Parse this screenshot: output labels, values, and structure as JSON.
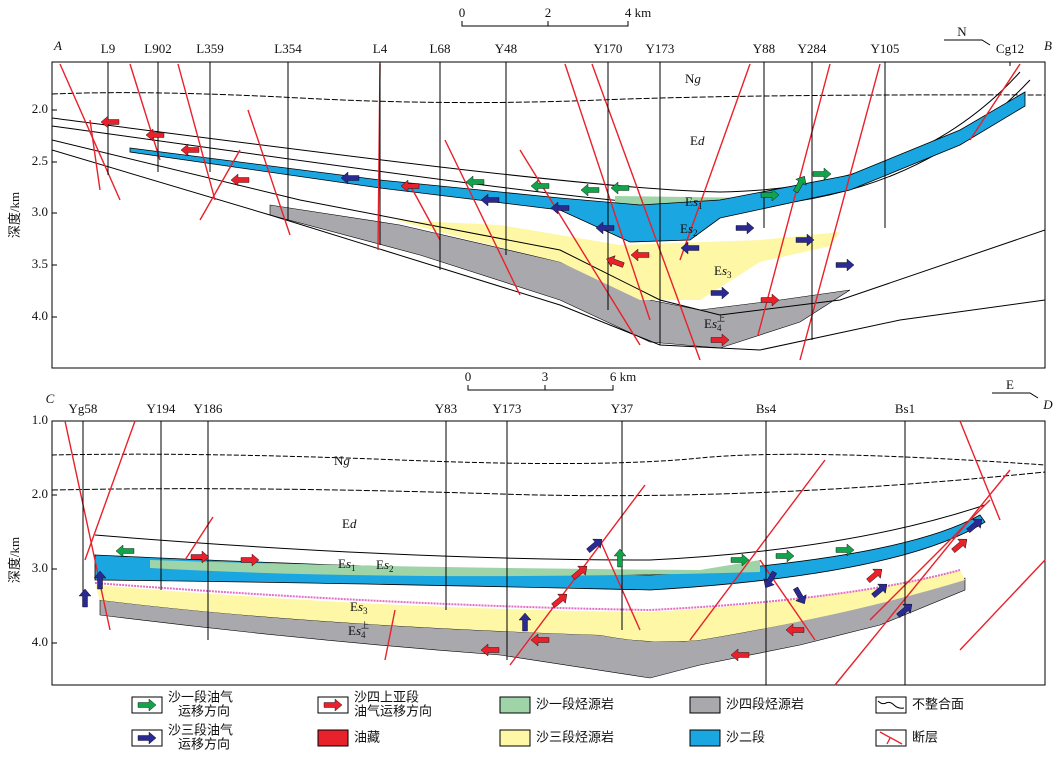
{
  "sections": [
    {
      "start": "A",
      "end": "B",
      "scale": [
        "0",
        "2",
        "4 km"
      ],
      "direction": "N",
      "axis_label": "深度/km",
      "depth_ticks": [
        "2.0",
        "2.5",
        "3.0",
        "3.5",
        "4.0"
      ],
      "wells": [
        "L9",
        "L902",
        "L359",
        "L354",
        "L4",
        "L68",
        "Y48",
        "Y170",
        "Y173",
        "Y88",
        "Y284",
        "Y105",
        "Cg12"
      ],
      "formations": [
        {
          "main": "N",
          "italic": "g"
        },
        {
          "main": "E",
          "italic": "d"
        },
        {
          "main": "E",
          "italic": "s",
          "sub": "1"
        },
        {
          "main": "E",
          "italic": "s",
          "sub": "2"
        },
        {
          "main": "E",
          "italic": "s",
          "sub": "3"
        },
        {
          "main": "E",
          "italic": "s",
          "sub": "4",
          "sup": "上"
        }
      ]
    },
    {
      "start": "C",
      "end": "D",
      "scale": [
        "0",
        "3",
        "6 km"
      ],
      "direction": "E",
      "axis_label": "深度/km",
      "depth_ticks": [
        "1.0",
        "2.0",
        "3.0",
        "4.0"
      ],
      "wells": [
        "Yg58",
        "Y194",
        "Y186",
        "Y83",
        "Y173",
        "Y37",
        "Bs4",
        "Bs1"
      ],
      "formations": [
        {
          "main": "N",
          "italic": "g"
        },
        {
          "main": "E",
          "italic": "d"
        },
        {
          "main": "E",
          "italic": "s",
          "sub": "1"
        },
        {
          "main": "E",
          "italic": "s",
          "sub": "2"
        },
        {
          "main": "E",
          "italic": "s",
          "sub": "3"
        },
        {
          "main": "E",
          "italic": "s",
          "sub": "4",
          "sup": "上"
        }
      ]
    }
  ],
  "legend": [
    [
      "沙一段油气",
      "运移方向"
    ],
    [
      "沙四上亚段",
      "油气运移方向"
    ],
    [
      "沙一段烃源岩"
    ],
    [
      "沙四段烃源岩"
    ],
    [
      "不整合面"
    ],
    [
      "沙三段油气",
      "运移方向"
    ],
    [
      "油藏"
    ],
    [
      "沙三段烃源岩"
    ],
    [
      "沙二段"
    ],
    [
      "断层"
    ]
  ]
}
